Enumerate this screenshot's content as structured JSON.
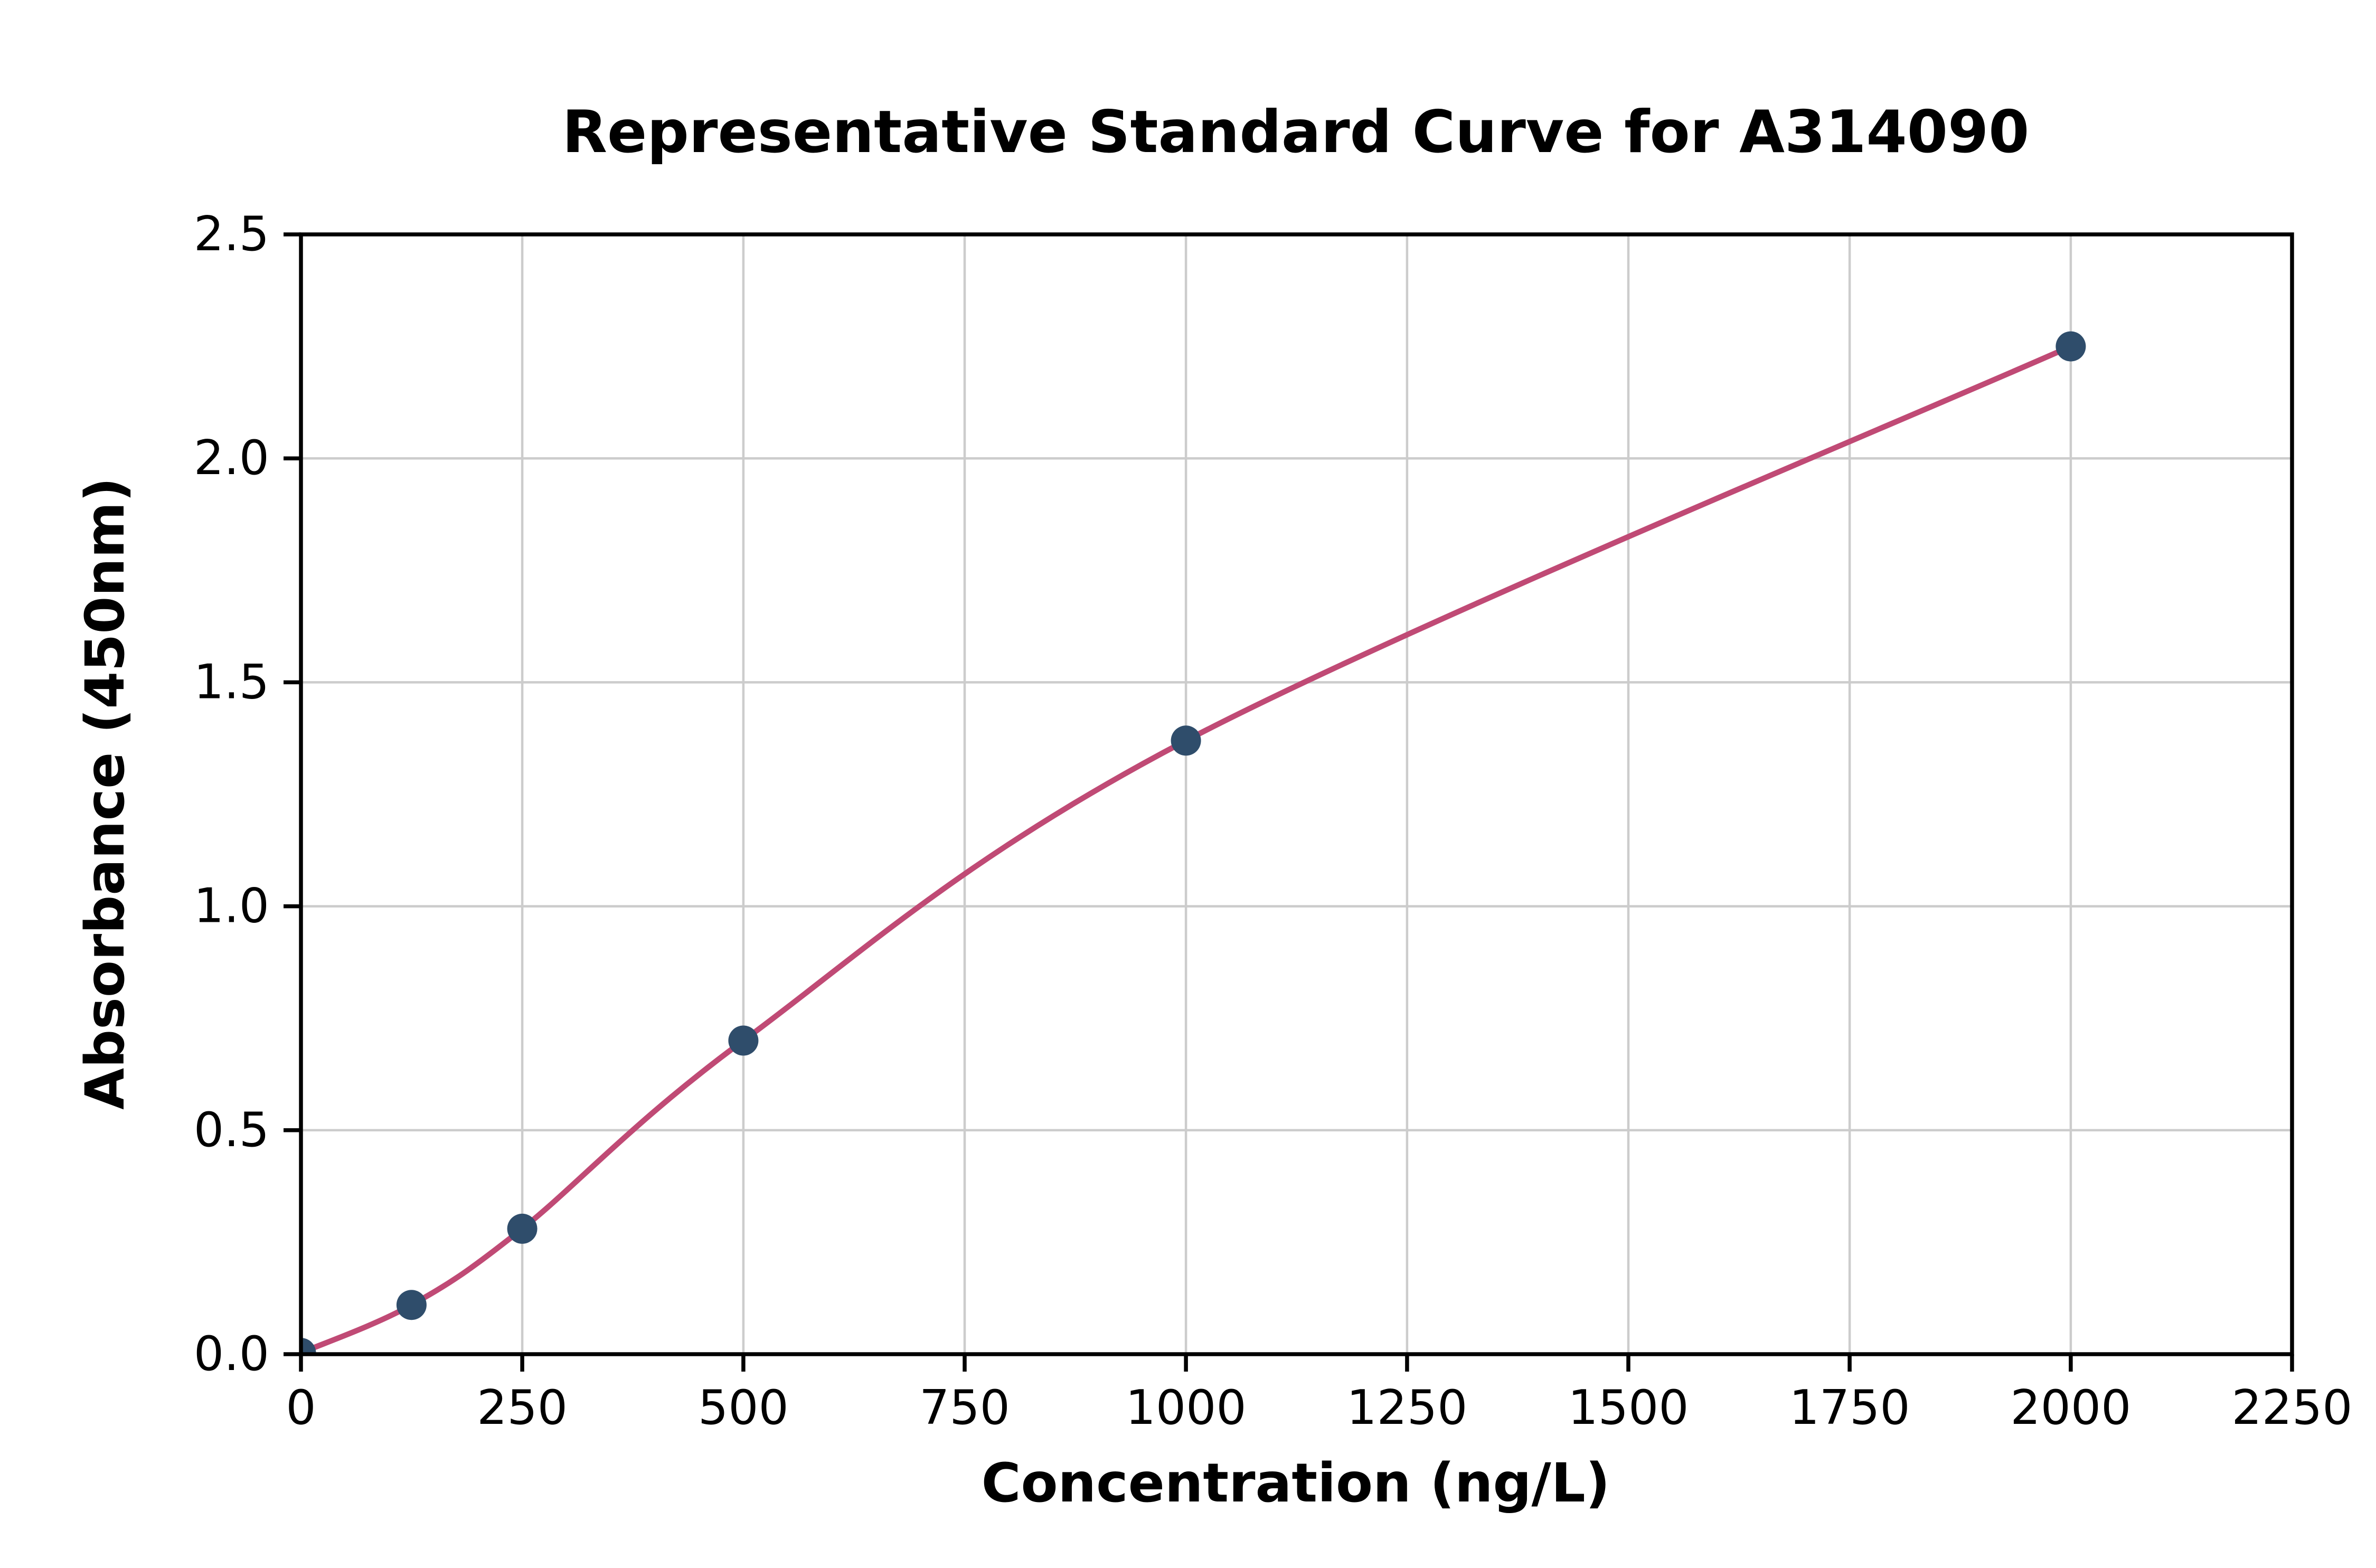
{
  "chart_data": {
    "type": "scatter",
    "title": "Representative Standard Curve for A314090",
    "xlabel": "Concentration (ng/L)",
    "ylabel": "Absorbance (450nm)",
    "xlim": [
      0,
      2250
    ],
    "ylim": [
      0,
      2.5
    ],
    "xticks": [
      0,
      250,
      500,
      750,
      1000,
      1250,
      1500,
      1750,
      2000,
      2250
    ],
    "xtick_labels": [
      "0",
      "250",
      "500",
      "750",
      "1000",
      "1250",
      "1500",
      "1750",
      "2000",
      "2250"
    ],
    "yticks": [
      0.0,
      0.5,
      1.0,
      1.5,
      2.0,
      2.5
    ],
    "ytick_labels": [
      "0.0",
      "0.5",
      "1.0",
      "1.5",
      "2.0",
      "2.5"
    ],
    "grid": true,
    "legend": "none",
    "series": [
      {
        "name": "fit-curve",
        "type": "line",
        "color": "#c04a75",
        "x": [
          0,
          125,
          250,
          500,
          1000,
          2000
        ],
        "y": [
          0.003,
          0.11,
          0.28,
          0.7,
          1.37,
          2.25
        ]
      },
      {
        "name": "standard-points",
        "type": "scatter",
        "color": "#2f4d6b",
        "x": [
          0,
          125,
          250,
          500,
          1000,
          2000
        ],
        "y": [
          0.003,
          0.11,
          0.28,
          0.7,
          1.37,
          2.25
        ]
      }
    ],
    "colors": {
      "line": "#c04a75",
      "marker": "#2f4d6b",
      "grid": "#cccccc",
      "axis": "#000000",
      "background": "#ffffff"
    }
  }
}
